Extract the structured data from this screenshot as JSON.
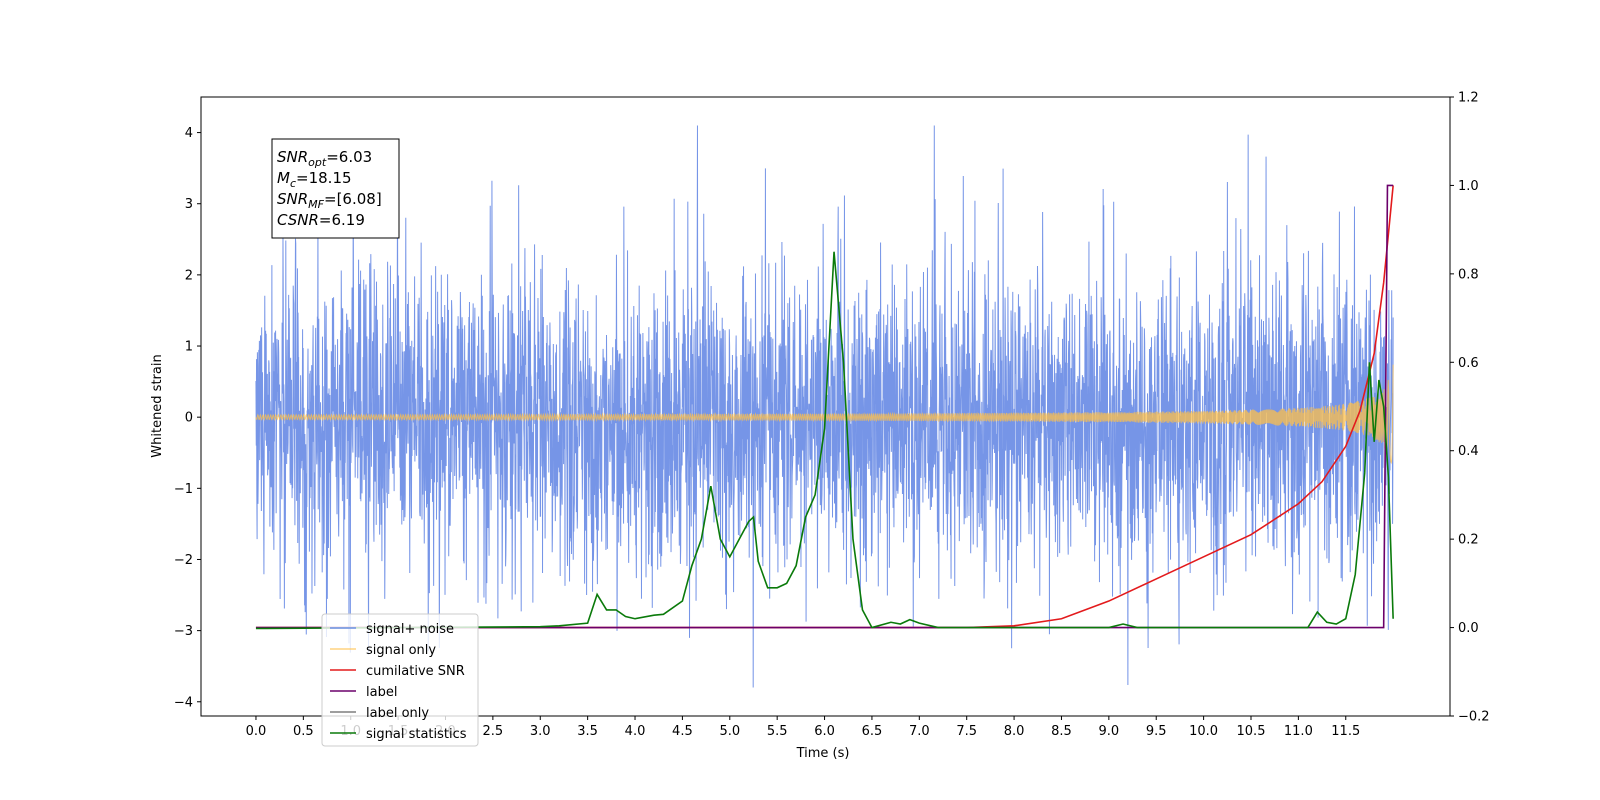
{
  "chart_data": {
    "type": "line",
    "xlabel": "Time (s)",
    "ylabel": "Whitened strain",
    "xlim": [
      -0.58,
      12.6
    ],
    "ylim_left": [
      -4.2,
      4.5
    ],
    "ylim_right": [
      -0.2,
      1.2
    ],
    "x_ticks": [
      "0.0",
      "0.5",
      "1.0",
      "1.5",
      "2.0",
      "2.5",
      "3.0",
      "3.5",
      "4.0",
      "4.5",
      "5.0",
      "5.5",
      "6.0",
      "6.5",
      "7.0",
      "7.5",
      "8.0",
      "8.5",
      "9.0",
      "9.5",
      "10.0",
      "10.5",
      "11.0",
      "11.5"
    ],
    "y_ticks_left": [
      "4",
      "3",
      "2",
      "1",
      "0",
      "−1",
      "−2",
      "−3",
      "−4"
    ],
    "y_ticks_right": [
      "1.2",
      "1.0",
      "0.8",
      "0.6",
      "0.4",
      "0.2",
      "0.0",
      "−0.2"
    ],
    "legend_placement": "lower-left",
    "annotation": [
      {
        "main": "SNR",
        "sub": "opt",
        "rest": "=6.03"
      },
      {
        "main": "M",
        "sub": "c",
        "rest": "=18.15"
      },
      {
        "main": "SNR",
        "sub": "MF",
        "rest": "=[6.08]"
      },
      {
        "main": "CSNR",
        "sub": "",
        "rest": "=6.19"
      }
    ],
    "series": [
      {
        "name": "signal+ noise",
        "axis": "left",
        "color": "#6f8fe6",
        "description": "whitened noise, amplitude approx ±2.5 with spikes up to 4.1 / -3.8"
      },
      {
        "name": "signal only",
        "axis": "left",
        "color": "#ffc04a",
        "chirp_end_amplitude": 0.8,
        "t_end": 12.0
      },
      {
        "name": "cumilative SNR",
        "axis": "right",
        "color": "#e31a1c",
        "x": [
          0,
          7.5,
          8.0,
          8.5,
          9.0,
          9.5,
          10.0,
          10.5,
          11.0,
          11.25,
          11.5,
          11.65,
          11.8,
          11.9,
          12.0
        ],
        "y": [
          0.0,
          0.0,
          0.004,
          0.02,
          0.06,
          0.11,
          0.16,
          0.21,
          0.28,
          0.33,
          0.41,
          0.49,
          0.62,
          0.78,
          1.0
        ]
      },
      {
        "name": "label",
        "axis": "right",
        "color": "#6b006b",
        "x": [
          0,
          11.9,
          11.94,
          12.0
        ],
        "y": [
          0.0,
          0.0,
          1.0,
          1.0
        ]
      },
      {
        "name": "label only",
        "axis": "right",
        "color": "#7f7f7f",
        "x": [],
        "y": []
      },
      {
        "name": "signal statistics",
        "axis": "right",
        "color": "#0a7a0a",
        "x": [
          0,
          0.1,
          3.0,
          3.2,
          3.5,
          3.6,
          3.7,
          3.8,
          3.9,
          4.0,
          4.2,
          4.3,
          4.5,
          4.6,
          4.7,
          4.8,
          4.9,
          5.0,
          5.1,
          5.2,
          5.25,
          5.3,
          5.4,
          5.5,
          5.6,
          5.7,
          5.8,
          5.9,
          6.0,
          6.1,
          6.2,
          6.3,
          6.4,
          6.5,
          6.7,
          6.8,
          6.9,
          7.0,
          7.2,
          7.5,
          8.0,
          9.0,
          9.15,
          9.3,
          11.1,
          11.2,
          11.3,
          11.4,
          11.5,
          11.6,
          11.7,
          11.75,
          11.8,
          11.85,
          11.9,
          11.95,
          12.0
        ],
        "y": [
          -0.002,
          -0.002,
          0.002,
          0.004,
          0.01,
          0.075,
          0.04,
          0.04,
          0.025,
          0.02,
          0.028,
          0.03,
          0.06,
          0.14,
          0.2,
          0.32,
          0.2,
          0.16,
          0.2,
          0.24,
          0.25,
          0.15,
          0.09,
          0.09,
          0.1,
          0.14,
          0.25,
          0.3,
          0.45,
          0.85,
          0.6,
          0.2,
          0.04,
          0.0,
          0.012,
          0.008,
          0.018,
          0.01,
          0.0,
          0.0,
          0.0,
          0.0,
          0.008,
          0.0,
          0.0,
          0.035,
          0.012,
          0.008,
          0.02,
          0.12,
          0.35,
          0.6,
          0.42,
          0.56,
          0.5,
          0.34,
          0.02
        ]
      }
    ]
  }
}
